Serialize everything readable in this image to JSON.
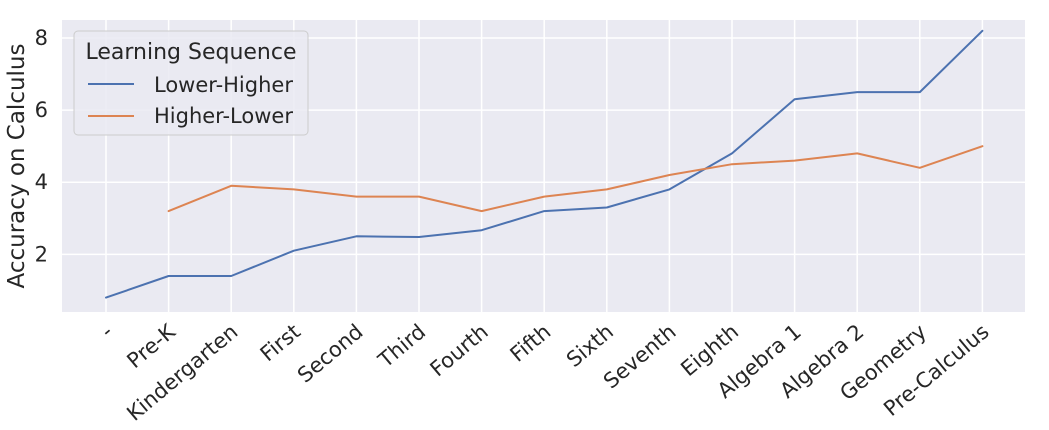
{
  "chart_data": {
    "type": "line",
    "title": "",
    "xlabel": "",
    "ylabel": "Accuracy on Calculus",
    "categories": [
      "-",
      "Pre-K",
      "Kindergarten",
      "First",
      "Second",
      "Third",
      "Fourth",
      "Fifth",
      "Sixth",
      "Seventh",
      "Eighth",
      "Algebra 1",
      "Algebra 2",
      "Geometry",
      "Pre-Calculus"
    ],
    "ylim": [
      0.4,
      8.5
    ],
    "yticks": [
      2,
      4,
      6,
      8
    ],
    "grid": true,
    "legend": {
      "title": "Learning Sequence",
      "placement": "top-left"
    },
    "series": [
      {
        "name": "Lower-Higher",
        "color": "#4c72b0",
        "values": [
          0.8,
          1.4,
          1.4,
          2.1,
          2.5,
          2.48,
          2.67,
          3.2,
          3.3,
          3.8,
          4.8,
          6.3,
          6.5,
          6.5,
          8.2
        ]
      },
      {
        "name": "Higher-Lower",
        "color": "#dd8452",
        "values": [
          null,
          3.2,
          3.9,
          3.8,
          3.6,
          3.6,
          3.2,
          3.6,
          3.8,
          4.2,
          4.5,
          4.6,
          4.8,
          4.4,
          5.0
        ]
      }
    ]
  }
}
